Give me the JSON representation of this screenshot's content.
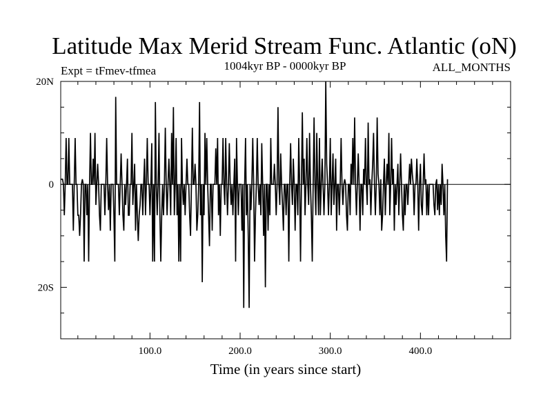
{
  "chart_data": {
    "type": "line",
    "title": "Latitude Max Merid Stream Func. Atlantic (oN)",
    "subtitle_left": "Expt = tFmev-tfmea",
    "subtitle_center": "1004kyr BP - 0000kyr BP",
    "subtitle_right": "ALL_MONTHS",
    "xlabel": "Time (in years since start)",
    "ylabel": "",
    "xlim": [
      1,
      500
    ],
    "ylim": [
      -30,
      20
    ],
    "x_ticks": [
      {
        "value": 100,
        "label": "100.0"
      },
      {
        "value": 200,
        "label": "200.0"
      },
      {
        "value": 300,
        "label": "300.0"
      },
      {
        "value": 400,
        "label": "400.0"
      }
    ],
    "x_minor_step": 20,
    "y_ticks": [
      {
        "value": 20,
        "label": "20N"
      },
      {
        "value": 0,
        "label": "0"
      },
      {
        "value": -20,
        "label": "20S"
      }
    ],
    "y_minor_step": 5,
    "grid": false,
    "series": [
      {
        "name": "Latitude Max Merid Stream Func. Atlantic",
        "x_start": 1,
        "x_step": 1,
        "values": [
          1,
          1,
          1,
          0,
          -6,
          0,
          9,
          0,
          0,
          9,
          0,
          0,
          0,
          0,
          -9,
          0,
          9,
          0,
          0,
          -6,
          -6,
          -10,
          -6,
          0,
          1,
          0,
          -15,
          0,
          0,
          -6,
          0,
          -15,
          0,
          10,
          0,
          0,
          5,
          0,
          10,
          -4,
          0,
          4,
          0,
          -6,
          -9,
          0,
          0,
          0,
          0,
          -6,
          0,
          9,
          0,
          -5,
          0,
          -9,
          0,
          0,
          0,
          -6,
          -15,
          17,
          0,
          0,
          0,
          -6,
          0,
          6,
          0,
          -6,
          -9,
          0,
          -4,
          0,
          5,
          -6,
          -6,
          0,
          0,
          10,
          -4,
          0,
          4,
          -9,
          0,
          -6,
          -11,
          -6,
          -4,
          0,
          0,
          -6,
          0,
          5,
          -6,
          0,
          9,
          0,
          0,
          -6,
          0,
          8,
          -15,
          0,
          -15,
          16,
          0,
          -6,
          0,
          10,
          -6,
          -15,
          -6,
          0,
          -6,
          0,
          11,
          0,
          -6,
          0,
          5,
          0,
          -6,
          10,
          0,
          15,
          -6,
          0,
          9,
          -6,
          0,
          -15,
          0,
          -15,
          9,
          0,
          -4,
          0,
          -6,
          0,
          5,
          0,
          0,
          -6,
          -10,
          0,
          11,
          0,
          0,
          4,
          0,
          -9,
          -6,
          0,
          16,
          -6,
          0,
          -19,
          0,
          -6,
          10,
          0,
          9,
          0,
          -6,
          -12,
          0,
          0,
          -9,
          0,
          0,
          0,
          7,
          0,
          9,
          -6,
          0,
          -10,
          0,
          0,
          9,
          0,
          -4,
          9,
          0,
          -6,
          0,
          8,
          0,
          -4,
          0,
          -6,
          0,
          5,
          -15,
          9,
          0,
          -6,
          0,
          0,
          0,
          -9,
          0,
          -24,
          0,
          9,
          -6,
          0,
          -10,
          -24,
          0,
          -5,
          0,
          9,
          0,
          -15,
          -6,
          0,
          9,
          0,
          -4,
          0,
          -6,
          8,
          0,
          -10,
          0,
          -20,
          0,
          0,
          -9,
          0,
          -6,
          9,
          0,
          0,
          0,
          4,
          0,
          -6,
          0,
          15,
          0,
          -4,
          6,
          0,
          -4,
          -9,
          0,
          0,
          -6,
          0,
          0,
          -15,
          0,
          8,
          0,
          -4,
          5,
          0,
          -9,
          0,
          0,
          -6,
          9,
          0,
          -15,
          0,
          14,
          0,
          5,
          -6,
          0,
          9,
          0,
          -4,
          10,
          0,
          -6,
          -15,
          0,
          13,
          0,
          -6,
          10,
          0,
          -6,
          9,
          -6,
          0,
          5,
          0,
          -6,
          0,
          20,
          4,
          0,
          -6,
          0,
          9,
          -6,
          0,
          6,
          -4,
          0,
          5,
          -9,
          0,
          0,
          -6,
          0,
          9,
          0,
          -4,
          0,
          1,
          0,
          -6,
          -9,
          0,
          0,
          -6,
          4,
          0,
          9,
          0,
          13,
          0,
          -6,
          0,
          6,
          0,
          -9,
          0,
          0,
          -6,
          3,
          0,
          9,
          0,
          -4,
          12,
          0,
          1,
          -6,
          0,
          4,
          10,
          0,
          -6,
          0,
          13,
          2,
          0,
          -6,
          1,
          -9,
          -6,
          0,
          5,
          -6,
          0,
          4,
          0,
          10,
          -6,
          0,
          9,
          0,
          3,
          -9,
          0,
          -4,
          0,
          4,
          -6,
          0,
          6,
          0,
          -6,
          -9,
          0,
          -6,
          0,
          0,
          -4,
          0,
          4,
          0,
          5,
          2,
          0,
          -6,
          0,
          0,
          5,
          0,
          -9,
          0,
          4,
          -4,
          -6,
          0,
          6,
          0,
          1,
          -6,
          0,
          -6,
          0,
          0,
          0,
          0,
          0,
          -4,
          -6,
          0,
          1,
          -5,
          0,
          -6,
          0,
          -4,
          4,
          0,
          -6,
          0,
          -10,
          -15,
          1
        ]
      }
    ]
  }
}
